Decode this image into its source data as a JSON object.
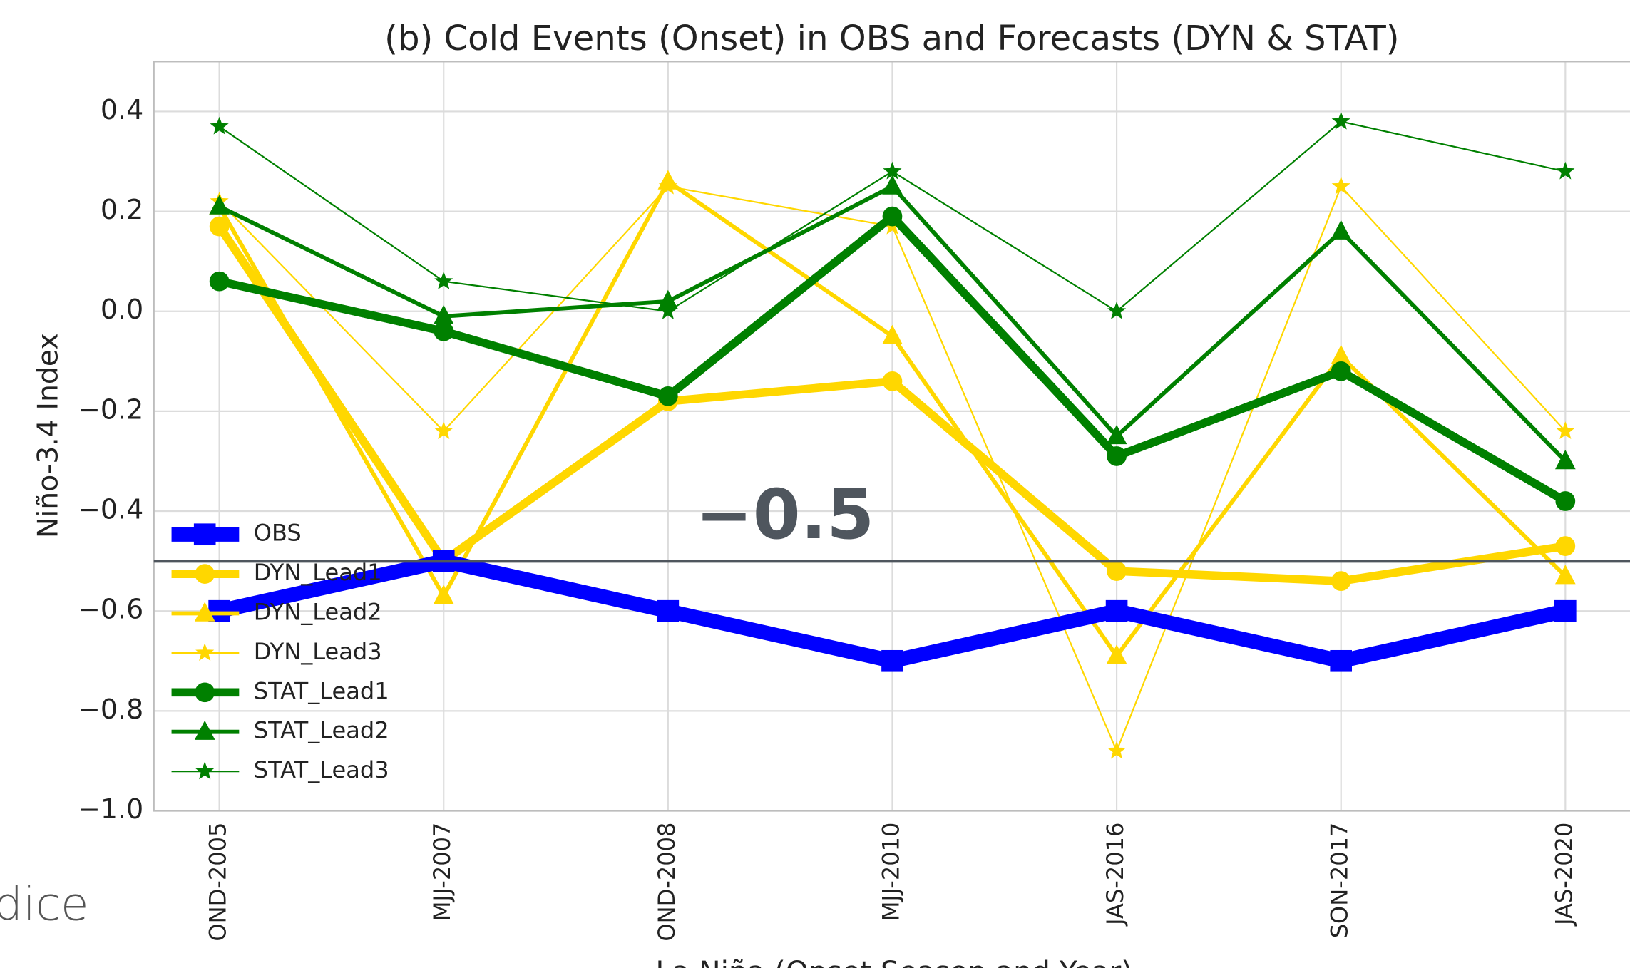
{
  "chart_data": {
    "type": "line",
    "title": "(b) Cold Events (Onset) in OBS and Forecasts (DYN & STAT)",
    "xlabel": "La Niña (Onset Season and Year)",
    "ylabel": "Niño-3.4 Index",
    "categories": [
      "OND-2005",
      "MJJ-2007",
      "OND-2008",
      "MJJ-2010",
      "JAS-2016",
      "SON-2017",
      "JAS-2020"
    ],
    "series": [
      {
        "name": "OBS",
        "color": "#0000ff",
        "marker": "square",
        "values": [
          -0.6,
          -0.5,
          -0.6,
          -0.7,
          -0.6,
          -0.7,
          -0.6
        ]
      },
      {
        "name": "DYN_Lead1",
        "color": "#ffd700",
        "marker": "circle",
        "values": [
          0.17,
          -0.5,
          -0.18,
          -0.14,
          -0.52,
          -0.54,
          -0.47
        ]
      },
      {
        "name": "DYN_Lead2",
        "color": "#ffd700",
        "marker": "triangle",
        "values": [
          0.21,
          -0.57,
          0.26,
          -0.05,
          -0.69,
          -0.09,
          -0.53
        ]
      },
      {
        "name": "DYN_Lead3",
        "color": "#ffd700",
        "marker": "star",
        "values": [
          0.22,
          -0.24,
          0.25,
          0.17,
          -0.88,
          0.25,
          -0.24
        ]
      },
      {
        "name": "STAT_Lead1",
        "color": "#008000",
        "marker": "circle",
        "values": [
          0.06,
          -0.04,
          -0.17,
          0.19,
          -0.29,
          -0.12,
          -0.38
        ]
      },
      {
        "name": "STAT_Lead2",
        "color": "#008000",
        "marker": "triangle",
        "values": [
          0.21,
          -0.01,
          0.02,
          0.25,
          -0.25,
          0.16,
          -0.3
        ]
      },
      {
        "name": "STAT_Lead3",
        "color": "#008000",
        "marker": "star",
        "values": [
          0.37,
          0.06,
          0.0,
          0.28,
          0.0,
          0.38,
          0.28
        ]
      }
    ],
    "ylim": [
      -1.0,
      0.5
    ],
    "yticks": [
      {
        "value": -1.0,
        "label": "−1.0"
      },
      {
        "value": -0.8,
        "label": "−0.8"
      },
      {
        "value": -0.6,
        "label": "−0.6"
      },
      {
        "value": -0.4,
        "label": "−0.4"
      },
      {
        "value": -0.2,
        "label": "−0.2"
      },
      {
        "value": 0.0,
        "label": "0.0"
      },
      0.2,
      0.4
    ],
    "grid": true,
    "legend": "lower left",
    "reference_line": {
      "value": -0.5,
      "label": "−0.5",
      "color": "#4f565e"
    }
  },
  "overlay_text": "dice"
}
